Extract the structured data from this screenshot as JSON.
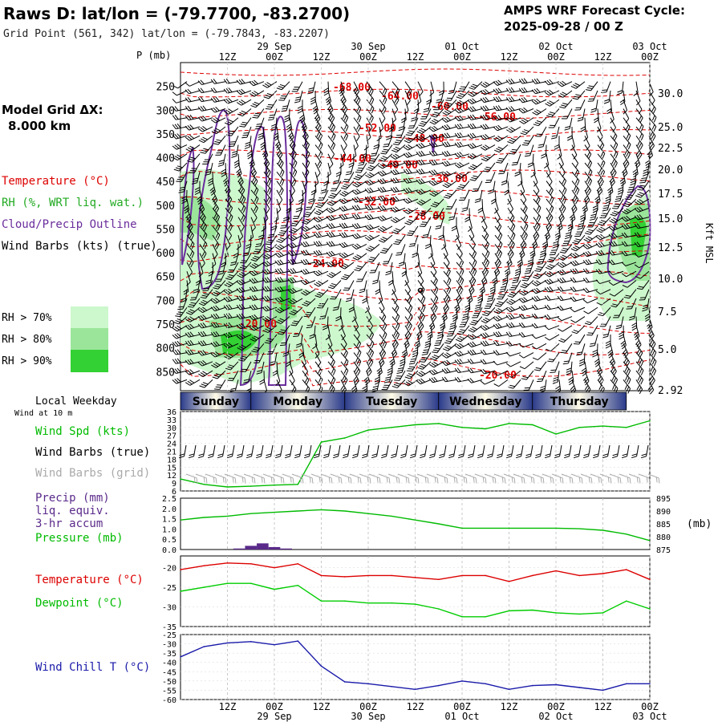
{
  "header": {
    "title": "Raws D:  lat/lon = (-79.7700, -83.2700)",
    "grid_point": "Grid Point (561, 342) lat/lon = (-79.7843, -83.2207)",
    "cycle_line1": "AMPS WRF Forecast Cycle:",
    "cycle_line2": "2025-09-28 / 00  Z"
  },
  "sidebar": {
    "model_grid_label": "Model Grid ΔX:",
    "model_grid_value": "8.000 km",
    "legend_temperature": "Temperature (°C)",
    "legend_rh": "RH (%, WRT liq. wat.)",
    "legend_cloud": "Cloud/Precip Outline",
    "legend_wind": "Wind Barbs (kts) (true)",
    "rh_levels": [
      "RH > 70%",
      "RH > 80%",
      "RH > 90%"
    ],
    "rh_colors": [
      "#cdf7cd",
      "#9be59b",
      "#33d133"
    ]
  },
  "time_axis": {
    "hour_labels": [
      "12Z",
      "00Z",
      "12Z",
      "00Z",
      "12Z",
      "00Z",
      "12Z",
      "00Z",
      "12Z",
      "00Z"
    ],
    "date_labels": [
      "29 Sep",
      "30 Sep",
      "01 Oct",
      "02 Oct",
      "03 Oct"
    ]
  },
  "weekday_bar": {
    "title": "Local Weekday",
    "days": [
      "Sunday",
      "Monday",
      "Tuesday",
      "Wednesday",
      "Thursday"
    ]
  },
  "colors": {
    "temperature": "#dd0000",
    "dewpoint": "#00cc00",
    "wind_speed": "#00bb00",
    "pressure": "#00bb00",
    "precip": "#5a2a8a",
    "cloud_outline": "#6a2d9c",
    "wind_chill": "#1a1aaa",
    "grid": "#bbbbbb",
    "barbs": "#000000",
    "barbs_grid": "#aaaaaa"
  },
  "chart_data": [
    {
      "type": "heatmap",
      "name": "cross-section",
      "p_axis_title": "P (mb)",
      "p_ticks": [
        250,
        300,
        350,
        400,
        450,
        500,
        550,
        600,
        650,
        700,
        750,
        800,
        850
      ],
      "ylim_mb": [
        200,
        890
      ],
      "height_axis_label": "Kft MSL",
      "height_ticks": [
        "30.0",
        "25.0",
        "22.5",
        "20.0",
        "17.5",
        "15.0",
        "12.5",
        "10.0",
        "7.5",
        "5.0",
        "2.92"
      ],
      "temperature_contour_labels": [
        "-68.00",
        "-64.00",
        "-60.00",
        "-56.00",
        "-52.00",
        "-48.00",
        "-44.00",
        "-40.00",
        "-36.00",
        "-32.00",
        "-28.00",
        "-24.00",
        "-20.00",
        "-20.00"
      ]
    },
    {
      "type": "line",
      "name": "wind-panel",
      "subtitle": "Wind at 10 m",
      "label_speed": "Wind Spd (kts)",
      "label_barbs_true": "Wind Barbs (true)",
      "label_barbs_grid": "Wind Barbs (grid)",
      "y_ticks": [
        36,
        33,
        30,
        27,
        24,
        21,
        18,
        15,
        12,
        9,
        6
      ],
      "ylim": [
        6,
        36
      ],
      "x_hours": [
        0,
        6,
        12,
        18,
        24,
        30,
        36,
        42,
        48,
        54,
        60,
        66,
        72,
        78,
        84,
        90,
        96,
        102,
        108,
        114,
        120
      ],
      "wind_speed": [
        10.5,
        8.5,
        7.5,
        7.8,
        8.2,
        8.5,
        24.5,
        26,
        29,
        30,
        31,
        31.5,
        30,
        29.5,
        31.5,
        31,
        27.5,
        30,
        30.5,
        30,
        32.5
      ]
    },
    {
      "type": "bar",
      "name": "precip-pressure-panel",
      "label_precip": "Precip (mm)",
      "label_precip2": "liq. equiv.",
      "label_precip3": "3-hr accum",
      "label_pressure": "Pressure (mb)",
      "right_unit": "(mb)",
      "precip_ticks": [
        "2.5",
        "2.0",
        "1.5",
        "1.0",
        "0.5",
        "0.0"
      ],
      "pressure_ticks": [
        895,
        890,
        885,
        880,
        875
      ],
      "precip_hours": [
        15,
        18,
        21,
        24,
        27
      ],
      "precip_mm": [
        0.05,
        0.18,
        0.3,
        0.12,
        0.05
      ],
      "x_hours": [
        0,
        6,
        12,
        18,
        24,
        30,
        36,
        42,
        48,
        54,
        60,
        66,
        72,
        78,
        84,
        90,
        96,
        102,
        108,
        114,
        120
      ],
      "pressure_mb": [
        886.5,
        887.5,
        888.0,
        889.0,
        889.5,
        890.0,
        890.5,
        890.0,
        889.0,
        888.0,
        886.5,
        885.0,
        883.3,
        883.3,
        883.3,
        883.3,
        883.3,
        883.1,
        882.5,
        881.0,
        878.5
      ]
    },
    {
      "type": "line",
      "name": "temperature-panel",
      "label_temperature": "Temperature (°C)",
      "label_dewpoint": "Dewpoint (°C)",
      "y_ticks": [
        -20,
        -25,
        -30,
        -35
      ],
      "ylim": [
        -35,
        -17
      ],
      "x_hours": [
        0,
        6,
        12,
        18,
        24,
        30,
        36,
        42,
        48,
        54,
        60,
        66,
        72,
        78,
        84,
        90,
        96,
        102,
        108,
        114,
        120
      ],
      "temperature": [
        -20.5,
        -19.5,
        -18.8,
        -19.0,
        -20.0,
        -19.0,
        -22.0,
        -22.3,
        -22.0,
        -22.0,
        -22.5,
        -23.0,
        -22.0,
        -22.0,
        -23.5,
        -22.0,
        -20.8,
        -22.0,
        -21.5,
        -20.5,
        -23.0
      ],
      "dewpoint": [
        -26.0,
        -25.0,
        -24.0,
        -24.0,
        -25.5,
        -24.5,
        -28.5,
        -28.5,
        -29.0,
        -29.0,
        -29.3,
        -30.5,
        -32.5,
        -32.5,
        -31.0,
        -30.8,
        -31.5,
        -31.8,
        -31.5,
        -28.5,
        -30.5
      ]
    },
    {
      "type": "line",
      "name": "wind-chill-panel",
      "label_wind_chill": "Wind Chill T (°C)",
      "y_ticks": [
        -25,
        -30,
        -35,
        -40,
        -45,
        -50,
        -55,
        -60
      ],
      "ylim": [
        -60,
        -25
      ],
      "x_hours": [
        0,
        6,
        12,
        18,
        24,
        30,
        36,
        42,
        48,
        54,
        60,
        66,
        72,
        78,
        84,
        90,
        96,
        102,
        108,
        114,
        120
      ],
      "wind_chill": [
        -37.0,
        -31.5,
        -29.5,
        -28.8,
        -30.5,
        -28.5,
        -42.0,
        -50.5,
        -51.5,
        -53.0,
        -54.5,
        -52.5,
        -50.0,
        -51.5,
        -54.5,
        -52.5,
        -52.0,
        -53.5,
        -55.0,
        -51.5,
        -51.5
      ]
    }
  ]
}
